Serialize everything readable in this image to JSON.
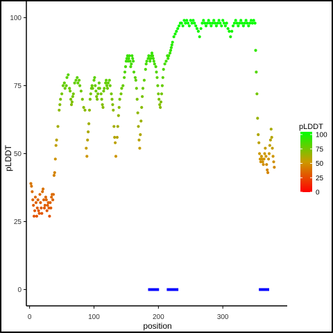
{
  "chart_data": {
    "type": "scatter",
    "title": "",
    "xlabel": "position",
    "ylabel": "pLDDT",
    "xlim": [
      -5,
      400
    ],
    "ylim": [
      -6,
      106
    ],
    "x_ticks": [
      0,
      100,
      200,
      300
    ],
    "y_ticks": [
      0,
      25,
      50,
      75,
      100
    ],
    "grid": false,
    "color_scale": {
      "title": "pLDDT",
      "low_color": "#ff0000",
      "high_color": "#00ff00",
      "ticks": [
        0,
        25,
        50,
        75,
        100
      ],
      "legend_position": "right"
    },
    "segment_color": "#0000ff",
    "segments": [
      {
        "x_start": 184,
        "x_end": 201,
        "y": 0
      },
      {
        "x_start": 213,
        "x_end": 231,
        "y": 0
      },
      {
        "x_start": 356,
        "x_end": 372,
        "y": 0
      }
    ],
    "series": [
      {
        "points": [
          [
            2,
            39
          ],
          [
            3,
            38
          ],
          [
            4,
            36
          ],
          [
            5,
            33
          ],
          [
            6,
            31
          ],
          [
            7,
            27
          ],
          [
            8,
            29
          ],
          [
            9,
            34
          ],
          [
            10,
            32
          ],
          [
            11,
            27
          ],
          [
            12,
            30
          ],
          [
            13,
            33
          ],
          [
            14,
            29
          ],
          [
            15,
            28
          ],
          [
            16,
            35
          ],
          [
            17,
            32
          ],
          [
            18,
            30
          ],
          [
            19,
            28
          ],
          [
            20,
            36
          ],
          [
            21,
            37
          ],
          [
            22,
            33
          ],
          [
            23,
            30
          ],
          [
            24,
            31
          ],
          [
            25,
            34
          ],
          [
            26,
            33
          ],
          [
            27,
            29
          ],
          [
            28,
            31
          ],
          [
            29,
            32
          ],
          [
            30,
            30
          ],
          [
            31,
            27
          ],
          [
            32,
            32
          ],
          [
            33,
            30
          ],
          [
            34,
            34
          ],
          [
            35,
            35
          ],
          [
            36,
            33
          ],
          [
            37,
            35
          ],
          [
            38,
            42
          ],
          [
            39,
            43
          ],
          [
            40,
            48
          ],
          [
            41,
            53
          ],
          [
            42,
            55
          ],
          [
            44,
            60
          ],
          [
            46,
            66
          ],
          [
            47,
            68
          ],
          [
            48,
            70
          ],
          [
            50,
            72
          ],
          [
            52,
            75
          ],
          [
            54,
            76
          ],
          [
            55,
            74
          ],
          [
            57,
            75
          ],
          [
            58,
            78
          ],
          [
            60,
            79
          ],
          [
            62,
            74
          ],
          [
            63,
            73
          ],
          [
            64,
            70
          ],
          [
            65,
            68
          ],
          [
            66,
            69
          ],
          [
            67,
            71
          ],
          [
            68,
            72
          ],
          [
            70,
            76
          ],
          [
            72,
            77
          ],
          [
            74,
            78
          ],
          [
            75,
            76
          ],
          [
            77,
            77
          ],
          [
            78,
            75
          ],
          [
            80,
            73
          ],
          [
            82,
            70
          ],
          [
            84,
            67
          ],
          [
            86,
            66
          ],
          [
            88,
            52
          ],
          [
            89,
            49
          ],
          [
            90,
            55
          ],
          [
            91,
            58
          ],
          [
            92,
            61
          ],
          [
            93,
            66
          ],
          [
            94,
            70
          ],
          [
            95,
            72
          ],
          [
            96,
            74
          ],
          [
            97,
            75
          ],
          [
            98,
            74
          ],
          [
            100,
            77
          ],
          [
            101,
            78
          ],
          [
            102,
            75
          ],
          [
            103,
            73
          ],
          [
            104,
            71
          ],
          [
            105,
            70
          ],
          [
            106,
            72
          ],
          [
            107,
            74
          ],
          [
            108,
            76
          ],
          [
            109,
            74
          ],
          [
            111,
            72
          ],
          [
            112,
            70
          ],
          [
            113,
            68
          ],
          [
            114,
            67
          ],
          [
            115,
            73
          ],
          [
            116,
            74
          ],
          [
            118,
            76
          ],
          [
            119,
            77
          ],
          [
            120,
            75
          ],
          [
            121,
            74
          ],
          [
            122,
            76
          ],
          [
            124,
            77
          ],
          [
            125,
            75
          ],
          [
            127,
            72
          ],
          [
            128,
            70
          ],
          [
            129,
            68
          ],
          [
            130,
            66
          ],
          [
            131,
            60
          ],
          [
            132,
            56
          ],
          [
            133,
            54
          ],
          [
            134,
            49
          ],
          [
            136,
            56
          ],
          [
            137,
            60
          ],
          [
            138,
            64
          ],
          [
            139,
            67
          ],
          [
            140,
            70
          ],
          [
            142,
            72
          ],
          [
            143,
            74
          ],
          [
            145,
            75
          ],
          [
            147,
            78
          ],
          [
            148,
            80
          ],
          [
            149,
            82
          ],
          [
            150,
            84
          ],
          [
            151,
            85
          ],
          [
            152,
            86
          ],
          [
            153,
            84
          ],
          [
            154,
            85
          ],
          [
            155,
            86
          ],
          [
            156,
            84
          ],
          [
            157,
            82
          ],
          [
            158,
            83
          ],
          [
            159,
            86
          ],
          [
            160,
            85
          ],
          [
            161,
            84
          ],
          [
            162,
            80
          ],
          [
            164,
            78
          ],
          [
            165,
            77
          ],
          [
            166,
            74
          ],
          [
            167,
            70
          ],
          [
            168,
            65
          ],
          [
            169,
            60
          ],
          [
            170,
            55
          ],
          [
            171,
            52
          ],
          [
            172,
            57
          ],
          [
            173,
            62
          ],
          [
            174,
            67
          ],
          [
            175,
            71
          ],
          [
            176,
            74
          ],
          [
            178,
            77
          ],
          [
            180,
            81
          ],
          [
            181,
            83
          ],
          [
            182,
            84
          ],
          [
            184,
            85
          ],
          [
            185,
            86
          ],
          [
            186,
            85
          ],
          [
            187,
            84
          ],
          [
            188,
            85
          ],
          [
            189,
            86
          ],
          [
            190,
            87
          ],
          [
            191,
            86
          ],
          [
            192,
            85
          ],
          [
            193,
            84
          ],
          [
            194,
            83
          ],
          [
            196,
            82
          ],
          [
            197,
            80
          ],
          [
            198,
            78
          ],
          [
            199,
            75
          ],
          [
            200,
            72
          ],
          [
            201,
            70
          ],
          [
            202,
            68
          ],
          [
            203,
            67
          ],
          [
            204,
            69
          ],
          [
            205,
            72
          ],
          [
            206,
            75
          ],
          [
            207,
            78
          ],
          [
            208,
            81
          ],
          [
            210,
            83
          ],
          [
            212,
            84
          ],
          [
            214,
            86
          ],
          [
            215,
            85
          ],
          [
            216,
            86
          ],
          [
            218,
            87
          ],
          [
            219,
            88
          ],
          [
            220,
            89
          ],
          [
            221,
            90
          ],
          [
            222,
            91
          ],
          [
            224,
            93
          ],
          [
            226,
            94
          ],
          [
            228,
            95
          ],
          [
            230,
            96
          ],
          [
            232,
            97
          ],
          [
            234,
            98
          ],
          [
            236,
            98
          ],
          [
            238,
            97
          ],
          [
            240,
            99
          ],
          [
            242,
            98
          ],
          [
            244,
            99
          ],
          [
            246,
            98
          ],
          [
            248,
            97
          ],
          [
            250,
            99
          ],
          [
            252,
            98
          ],
          [
            254,
            99
          ],
          [
            256,
            98
          ],
          [
            258,
            97
          ],
          [
            260,
            96
          ],
          [
            262,
            95
          ],
          [
            264,
            93
          ],
          [
            266,
            96
          ],
          [
            268,
            98
          ],
          [
            270,
            99
          ],
          [
            272,
            98
          ],
          [
            274,
            97
          ],
          [
            276,
            98
          ],
          [
            278,
            99
          ],
          [
            280,
            98
          ],
          [
            282,
            97
          ],
          [
            284,
            98
          ],
          [
            286,
            99
          ],
          [
            288,
            98
          ],
          [
            290,
            97
          ],
          [
            292,
            98
          ],
          [
            294,
            99
          ],
          [
            296,
            98
          ],
          [
            298,
            97
          ],
          [
            300,
            99
          ],
          [
            302,
            98
          ],
          [
            304,
            97
          ],
          [
            306,
            98
          ],
          [
            308,
            96
          ],
          [
            310,
            95
          ],
          [
            312,
            93
          ],
          [
            314,
            95
          ],
          [
            316,
            97
          ],
          [
            318,
            98
          ],
          [
            320,
            99
          ],
          [
            322,
            98
          ],
          [
            324,
            97
          ],
          [
            326,
            98
          ],
          [
            328,
            99
          ],
          [
            330,
            98
          ],
          [
            332,
            97
          ],
          [
            334,
            98
          ],
          [
            336,
            99
          ],
          [
            338,
            98
          ],
          [
            340,
            97
          ],
          [
            342,
            98
          ],
          [
            344,
            99
          ],
          [
            346,
            98
          ],
          [
            348,
            99
          ],
          [
            350,
            98
          ],
          [
            351,
            88
          ],
          [
            352,
            80
          ],
          [
            353,
            72
          ],
          [
            354,
            63
          ],
          [
            355,
            57
          ],
          [
            356,
            54
          ],
          [
            357,
            50
          ],
          [
            358,
            48
          ],
          [
            359,
            47
          ],
          [
            360,
            49
          ],
          [
            361,
            48
          ],
          [
            362,
            47
          ],
          [
            363,
            46
          ],
          [
            364,
            48
          ],
          [
            365,
            50
          ],
          [
            366,
            52
          ],
          [
            367,
            49
          ],
          [
            368,
            46
          ],
          [
            369,
            44
          ],
          [
            370,
            43
          ],
          [
            371,
            48
          ],
          [
            372,
            50
          ],
          [
            373,
            53
          ],
          [
            374,
            55
          ],
          [
            375,
            59
          ],
          [
            376,
            56
          ],
          [
            377,
            52
          ],
          [
            378,
            49
          ],
          [
            379,
            47
          ],
          [
            380,
            45
          ]
        ]
      }
    ]
  }
}
